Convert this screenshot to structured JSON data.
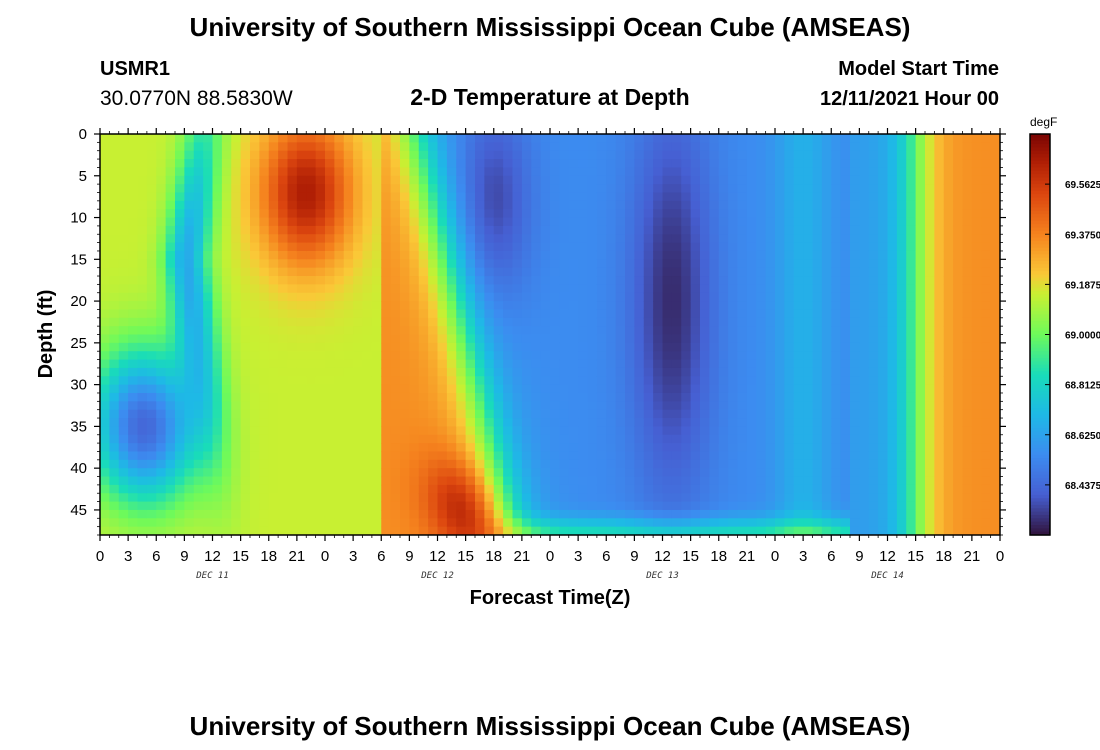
{
  "header": {
    "title": "University of Southern Mississippi Ocean Cube (AMSEAS)",
    "station_id": "USMR1",
    "station_coords": "30.0770N  88.5830W",
    "subtitle": "2-D Temperature at Depth",
    "model_start_label": "Model Start Time",
    "model_start_value": "12/11/2021 Hour 00"
  },
  "footer": {
    "title_repeat": "University of Southern Mississippi Ocean Cube (AMSEAS)"
  },
  "chart_data": {
    "type": "heatmap",
    "title": "2-D Temperature at Depth",
    "xlabel": "Forecast Time(Z)",
    "ylabel": "Depth (ft)",
    "units": "degF",
    "x_range_hours": [
      0,
      96
    ],
    "x_tick_labels": [
      "0",
      "3",
      "6",
      "9",
      "12",
      "15",
      "18",
      "21",
      "0",
      "3",
      "6",
      "9",
      "12",
      "15",
      "18",
      "21",
      "0",
      "3",
      "6",
      "9",
      "12",
      "15",
      "18",
      "21",
      "0",
      "3",
      "6",
      "9",
      "12",
      "15",
      "18",
      "21",
      "0"
    ],
    "day_labels": [
      "DEC 11",
      "DEC 12",
      "DEC 13",
      "DEC 14"
    ],
    "y_range_ft": [
      0,
      48
    ],
    "y_ticks": [
      0,
      5,
      10,
      15,
      20,
      25,
      30,
      35,
      40,
      45
    ],
    "y_tick_labels": [
      "0",
      "5",
      "10",
      "15",
      "20",
      "25",
      "30",
      "35",
      "40",
      "45"
    ],
    "y_inverted": true,
    "colorbar": {
      "min": 68.25,
      "max": 69.75,
      "ticks": [
        69.5625,
        69.375,
        69.1875,
        69.0,
        68.8125,
        68.625,
        68.4375
      ],
      "tick_labels": [
        "69.5625",
        "69.3750",
        "69.1875",
        "69.0000",
        "68.8125",
        "68.6250",
        "68.4375"
      ]
    }
  }
}
